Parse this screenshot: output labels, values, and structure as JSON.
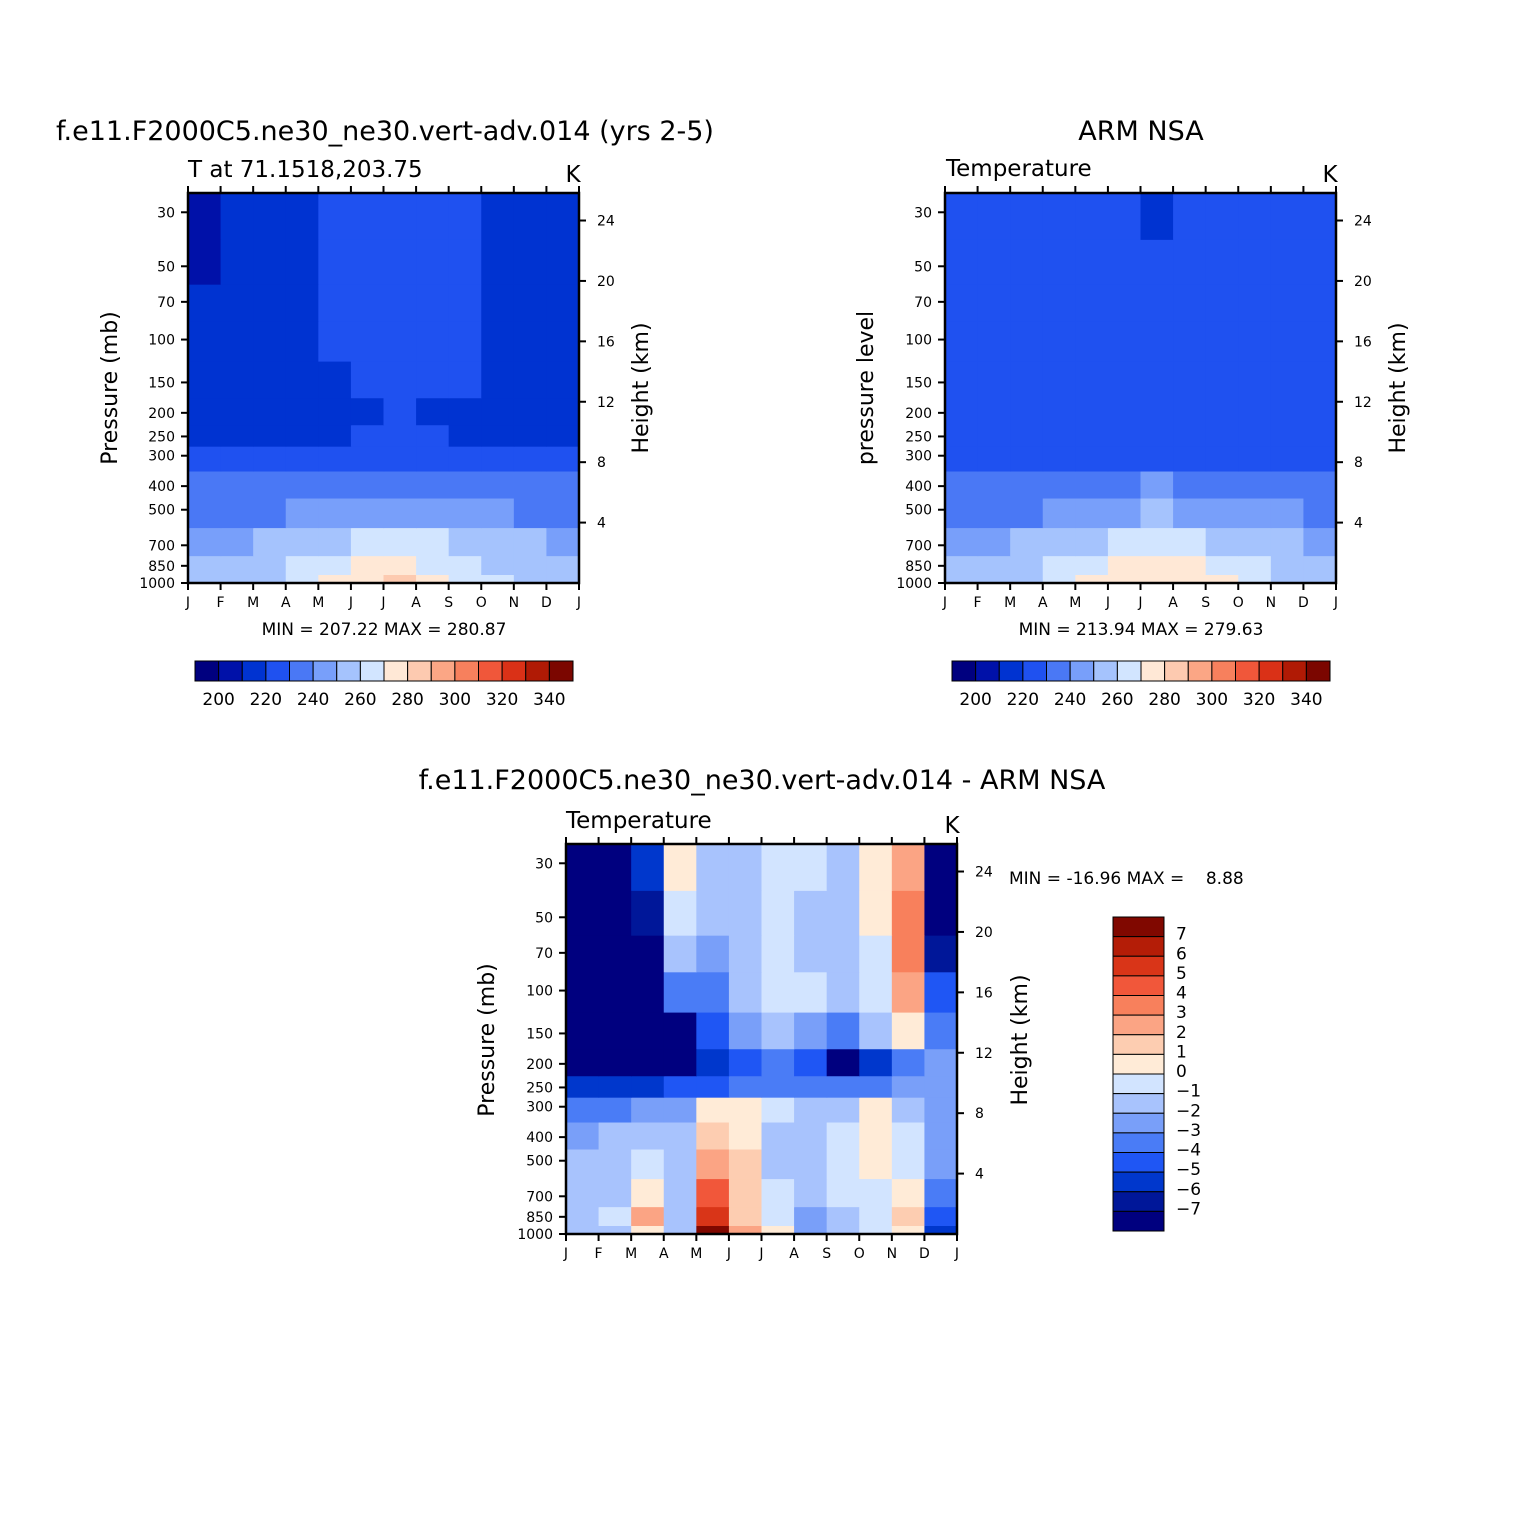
{
  "months": [
    "J",
    "F",
    "M",
    "A",
    "M",
    "J",
    "J",
    "A",
    "S",
    "O",
    "N",
    "D",
    "J"
  ],
  "pressure_ticks": [
    "30",
    "50",
    "70",
    "100",
    "150",
    "200",
    "250",
    "300",
    "400",
    "500",
    "700",
    "850",
    "1000"
  ],
  "height_ticks": [
    "24",
    "20",
    "16",
    "12",
    "8",
    "4"
  ],
  "colormap_full": [
    "#00007f",
    "#0011a9",
    "#0033d1",
    "#1f51f0",
    "#4a78f5",
    "#789ffa",
    "#a5c3fd",
    "#d2e5ff",
    "#ffe8d6",
    "#fdcab0",
    "#fba685",
    "#f7805d",
    "#f0573a",
    "#da3117",
    "#b01a05",
    "#7b0600"
  ],
  "colormap_diff": [
    "#00007f",
    "#001799",
    "#0037cc",
    "#1f56f4",
    "#4a7cf6",
    "#799ff9",
    "#a8c3fd",
    "#d2e4ff",
    "#ffebd7",
    "#fdcdb1",
    "#fba484",
    "#f8805c",
    "#f1573a",
    "#d93518",
    "#b41d07",
    "#800800"
  ],
  "panels": [
    {
      "title": "f.e11.F2000C5.ne30_ne30.vert-adv.014 (yrs 2-5)",
      "subtitle_left": "T at 71.1518,203.75",
      "units": "K",
      "ylabel": "Pressure (mb)",
      "ylabel_right": "Height (km)",
      "minmax": "MIN = 207.22 MAX = 280.87",
      "chart_data": {
        "type": "heatmap",
        "x": [
          "Jan",
          "Feb",
          "Mar",
          "Apr",
          "May",
          "Jun",
          "Jul",
          "Aug",
          "Sep",
          "Oct",
          "Nov",
          "Dec"
        ],
        "y_pressure_mb": [
          1000,
          850,
          700,
          500,
          400,
          300,
          250,
          200,
          150,
          100,
          70,
          50,
          30
        ],
        "units": "K",
        "levels": [
          200,
          210,
          220,
          230,
          240,
          250,
          260,
          270,
          280,
          290,
          300,
          310,
          320,
          330,
          340
        ],
        "min": 207.22,
        "max": 280.87,
        "values": [
          [
            257,
            257,
            259,
            263,
            272,
            277,
            280,
            276,
            268,
            262,
            259,
            257
          ],
          [
            255,
            255,
            256,
            260,
            266,
            270,
            271,
            269,
            264,
            259,
            256,
            255
          ],
          [
            249,
            249,
            250,
            252,
            257,
            261,
            263,
            262,
            258,
            253,
            250,
            249
          ],
          [
            238,
            238,
            239,
            240,
            243,
            247,
            249,
            248,
            246,
            242,
            239,
            238
          ],
          [
            230,
            230,
            230,
            231,
            233,
            237,
            239,
            238,
            236,
            233,
            230,
            230
          ],
          [
            222,
            222,
            222,
            222,
            223,
            226,
            228,
            227,
            225,
            223,
            222,
            222
          ],
          [
            218,
            218,
            218,
            218,
            219,
            220,
            221,
            220,
            219,
            219,
            218,
            218
          ],
          [
            216,
            216,
            216,
            217,
            217,
            219,
            220,
            219,
            218,
            217,
            216,
            216
          ],
          [
            214,
            215,
            216,
            218,
            219,
            221,
            222,
            222,
            221,
            219,
            217,
            215
          ],
          [
            212,
            214,
            216,
            219,
            220,
            222,
            223,
            222,
            221,
            218,
            216,
            213
          ],
          [
            210,
            213,
            215,
            219,
            220,
            222,
            223,
            222,
            220,
            218,
            214,
            212
          ],
          [
            209,
            212,
            214,
            219,
            221,
            222,
            223,
            222,
            220,
            218,
            213,
            211
          ],
          [
            207,
            212,
            214,
            219,
            221,
            222,
            223,
            222,
            220,
            217,
            212,
            211
          ]
        ]
      },
      "colorbar_labels": [
        "200",
        "220",
        "240",
        "260",
        "280",
        "300",
        "320",
        "340"
      ]
    },
    {
      "title": "ARM NSA",
      "subtitle_left": "Temperature",
      "units": "K",
      "ylabel": "pressure level",
      "ylabel_right": "Height (km)",
      "minmax": "MIN = 213.94 MAX = 279.63",
      "chart_data": {
        "type": "heatmap",
        "x": [
          "Jan",
          "Feb",
          "Mar",
          "Apr",
          "May",
          "Jun",
          "Jul",
          "Aug",
          "Sep",
          "Oct",
          "Nov",
          "Dec"
        ],
        "y_pressure_mb": [
          1000,
          850,
          700,
          500,
          400,
          300,
          250,
          200,
          150,
          100,
          70,
          50,
          30
        ],
        "units": "K",
        "levels": [
          200,
          210,
          220,
          230,
          240,
          250,
          260,
          270,
          280,
          290,
          300,
          310,
          320,
          330,
          340
        ],
        "min": 213.94,
        "max": 279.63,
        "values": [
          [
            258,
            258,
            259,
            264,
            273,
            278,
            279,
            277,
            270,
            263,
            258,
            258
          ],
          [
            255,
            255,
            256,
            261,
            267,
            271,
            272,
            270,
            265,
            260,
            256,
            255
          ],
          [
            249,
            249,
            250,
            253,
            258,
            262,
            264,
            263,
            259,
            254,
            250,
            249
          ],
          [
            239,
            239,
            239,
            241,
            244,
            248,
            250,
            249,
            246,
            242,
            240,
            239
          ],
          [
            231,
            231,
            231,
            232,
            234,
            238,
            240,
            239,
            236,
            233,
            231,
            231
          ],
          [
            224,
            223,
            223,
            224,
            225,
            227,
            229,
            228,
            226,
            224,
            223,
            224
          ],
          [
            221,
            220,
            220,
            221,
            222,
            224,
            225,
            224,
            223,
            221,
            220,
            221
          ],
          [
            220,
            220,
            220,
            221,
            222,
            223,
            224,
            223,
            222,
            221,
            220,
            220
          ],
          [
            221,
            221,
            222,
            222,
            223,
            223,
            224,
            223,
            222,
            221,
            220,
            220
          ],
          [
            221,
            221,
            222,
            222,
            222,
            223,
            223,
            223,
            222,
            221,
            220,
            220
          ],
          [
            221,
            221,
            222,
            222,
            222,
            223,
            223,
            223,
            222,
            221,
            220,
            221
          ],
          [
            222,
            222,
            222,
            222,
            222,
            223,
            223,
            223,
            222,
            221,
            220,
            221
          ],
          [
            222,
            222,
            222,
            222,
            222,
            223,
            214,
            223,
            222,
            221,
            220,
            221
          ]
        ]
      },
      "colorbar_labels": [
        "200",
        "220",
        "240",
        "260",
        "280",
        "300",
        "320",
        "340"
      ]
    },
    {
      "title": "f.e11.F2000C5.ne30_ne30.vert-adv.014 - ARM NSA",
      "subtitle_left": "Temperature",
      "units": "K",
      "ylabel": "Pressure (mb)",
      "ylabel_right": "Height (km)",
      "minmax": "MIN = -16.96 MAX =    8.88",
      "chart_data": {
        "type": "heatmap",
        "x": [
          "Jan",
          "Feb",
          "Mar",
          "Apr",
          "May",
          "Jun",
          "Jul",
          "Aug",
          "Sep",
          "Oct",
          "Nov",
          "Dec"
        ],
        "y_pressure_mb": [
          1000,
          850,
          700,
          500,
          400,
          300,
          250,
          200,
          150,
          100,
          70,
          50,
          30
        ],
        "units": "K",
        "levels": [
          -7,
          -6,
          -5,
          -4,
          -3,
          -2,
          -1,
          0,
          1,
          2,
          3,
          4,
          5,
          6,
          7
        ],
        "min": -16.96,
        "max": 8.88,
        "values": [
          [
            -2,
            -1.5,
            0.5,
            -1.5,
            8.9,
            2,
            0,
            -3,
            -1.5,
            -1,
            0.5,
            -6
          ],
          [
            -1.5,
            -1,
            2,
            -1.5,
            5.5,
            1.5,
            -0.5,
            -2.5,
            -1.5,
            -0.5,
            1.5,
            -5
          ],
          [
            -2,
            -1.5,
            0.5,
            -1.5,
            4,
            1.5,
            -1,
            -1.5,
            -1,
            -0.5,
            0.5,
            -4
          ],
          [
            -2,
            -1.5,
            -1,
            -2,
            2.5,
            1,
            -1.5,
            -1.5,
            -1,
            0,
            -0.5,
            -3
          ],
          [
            -2.5,
            -2,
            -1.5,
            -2,
            1.5,
            0.5,
            -1.5,
            -1.5,
            -1,
            0.5,
            -1,
            -3
          ],
          [
            -4,
            -3.5,
            -3,
            -3,
            0.5,
            0.5,
            -1,
            -2,
            -1.5,
            0,
            -1.5,
            -3
          ],
          [
            -6,
            -5.5,
            -5.5,
            -5,
            -4.5,
            -4,
            -4,
            -4,
            -4,
            -3.5,
            -3,
            -2.5
          ],
          [
            -7.5,
            -8,
            -8,
            -7.5,
            -6,
            -4.5,
            -4,
            -5,
            -8.5,
            -6,
            -4,
            -3
          ],
          [
            -12,
            -11,
            -10,
            -8,
            -5,
            -3,
            -2,
            -2.5,
            -4,
            -2,
            0,
            -4
          ],
          [
            -14,
            -12,
            -9,
            -4,
            -4,
            -2,
            -0.5,
            -1,
            -2,
            -1,
            2,
            -5
          ],
          [
            -15,
            -12,
            -8,
            -2,
            -3,
            -2,
            -1,
            -1.5,
            -2,
            -0.5,
            3,
            -7
          ],
          [
            -16,
            -13,
            -7,
            -1,
            -2,
            -2,
            -1,
            -1.5,
            -2,
            0,
            3,
            -9
          ],
          [
            -17,
            -14,
            -6,
            0,
            -1.5,
            -2,
            -1,
            -1,
            -2,
            0,
            2,
            -11
          ]
        ]
      },
      "colorbar_labels": [
        "7",
        "6",
        "5",
        "4",
        "3",
        "2",
        "1",
        "0",
        "-1",
        "-2",
        "-3",
        "-4",
        "-5",
        "-6",
        "-7"
      ]
    }
  ]
}
